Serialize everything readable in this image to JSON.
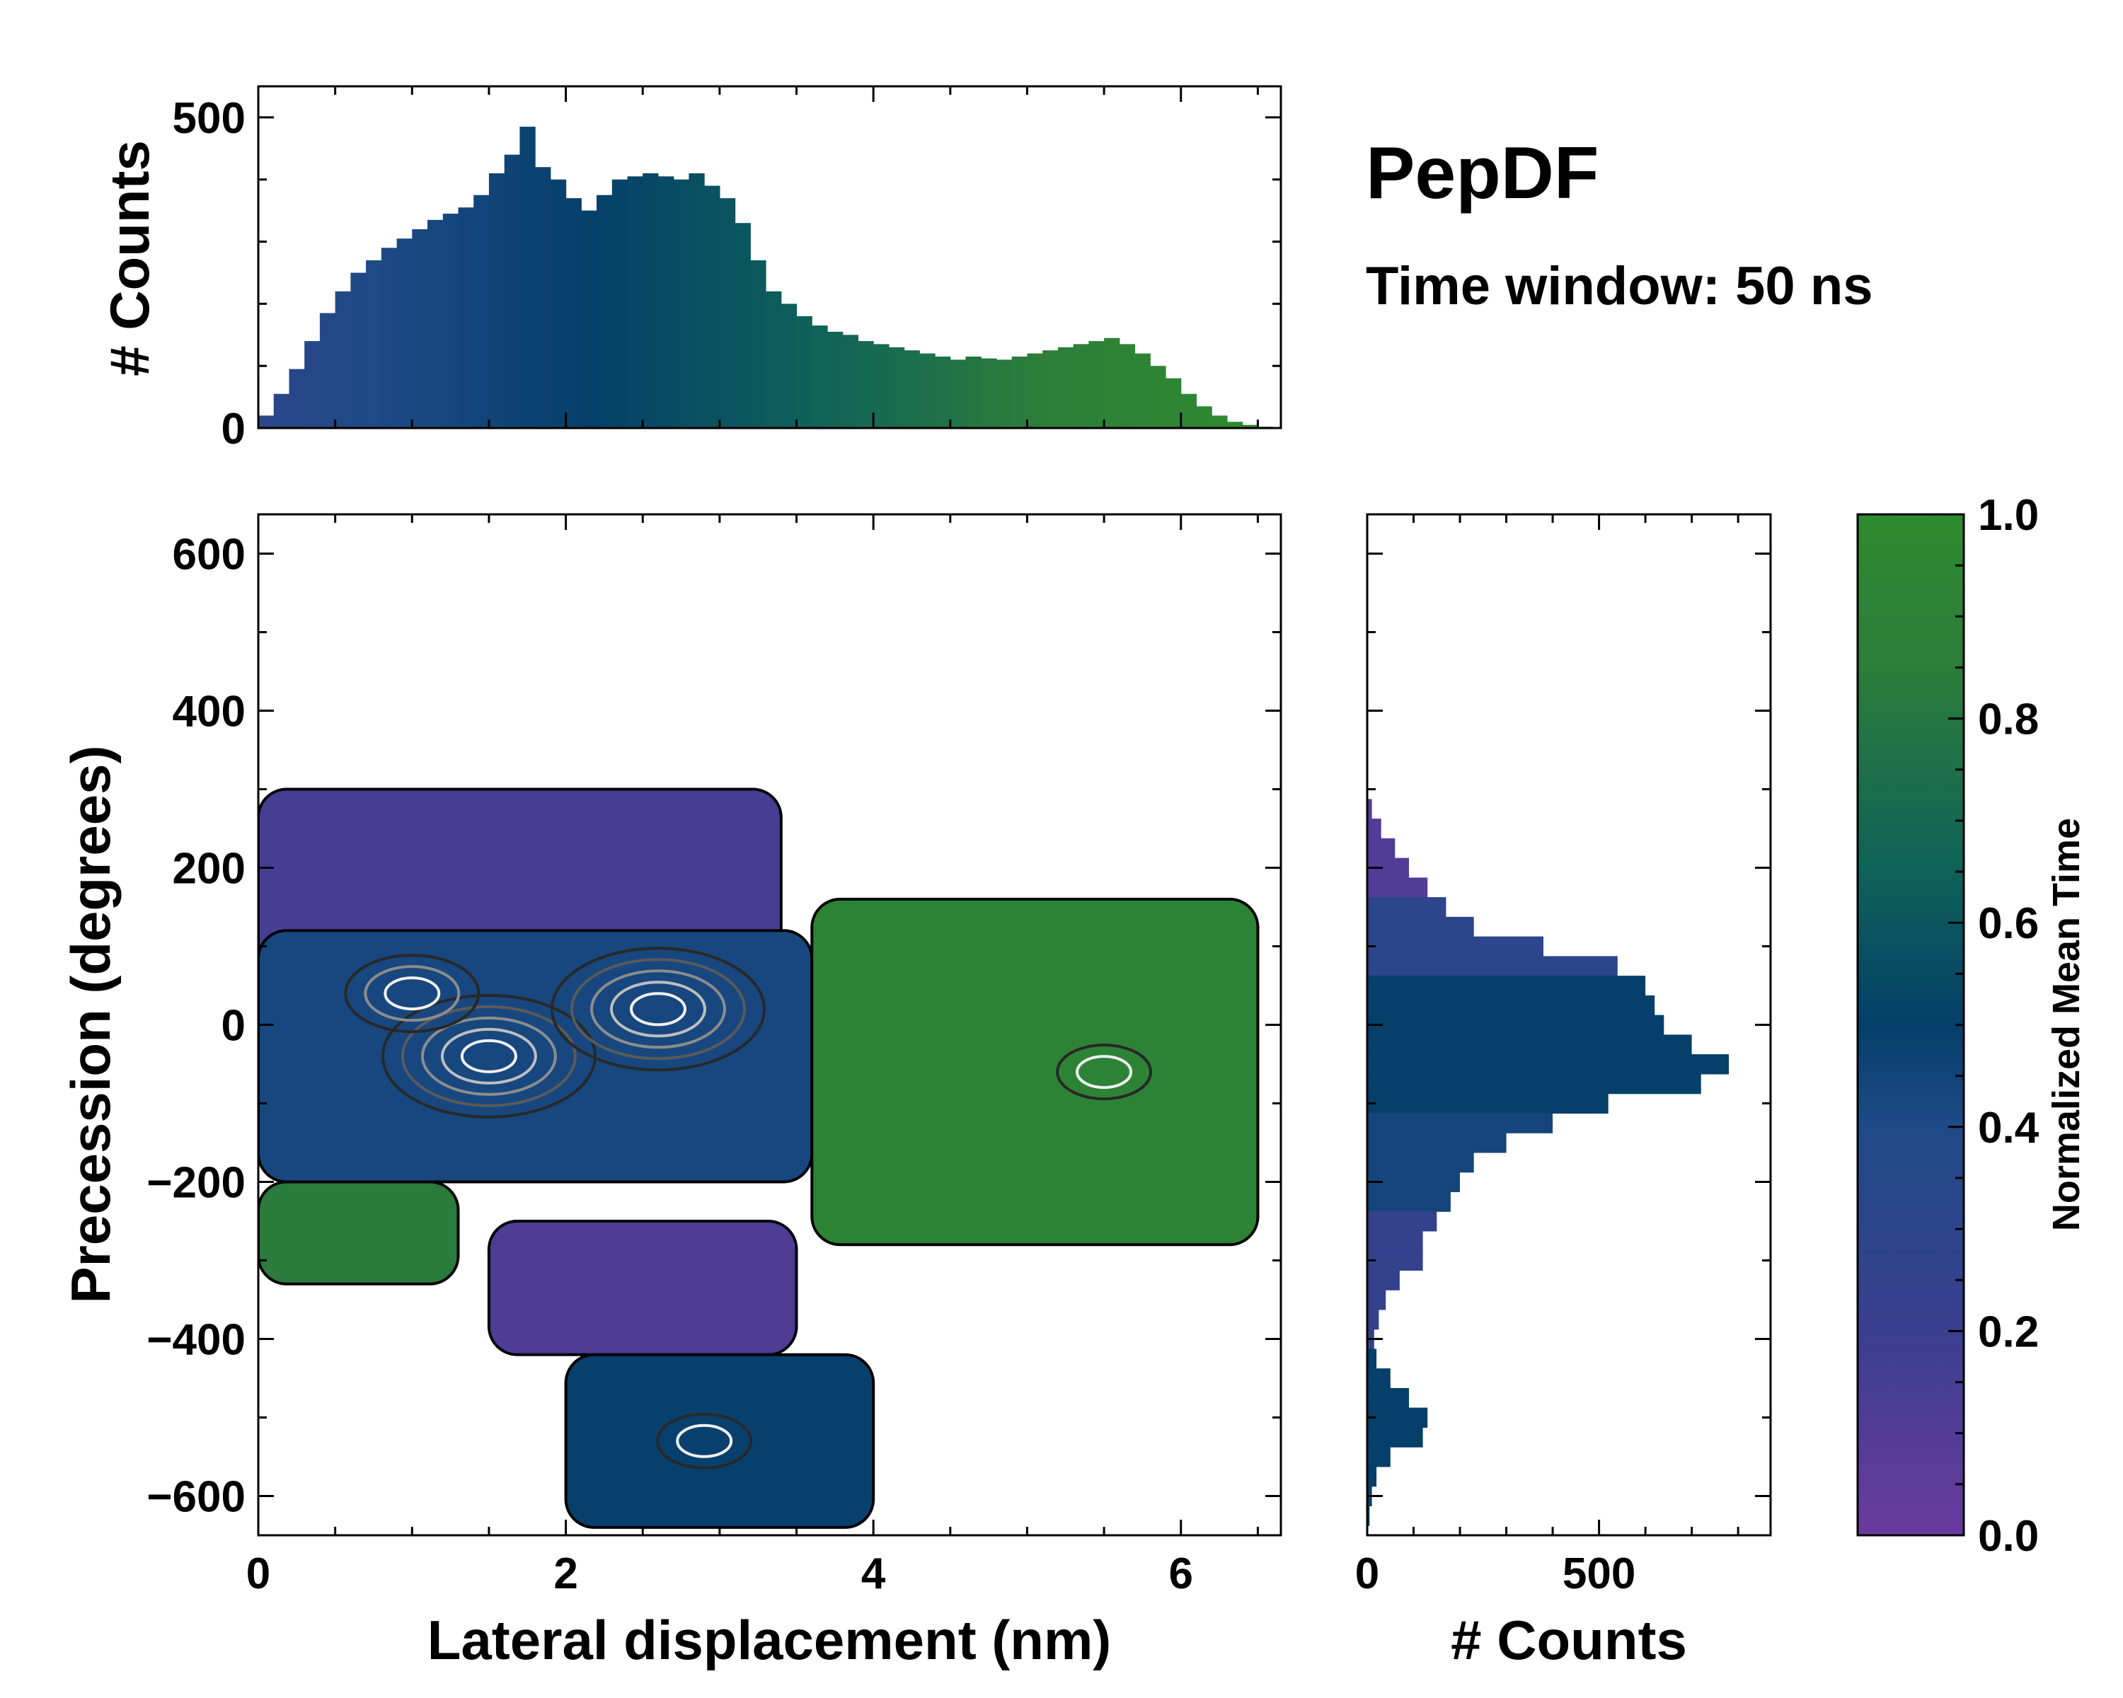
{
  "chart_data": {
    "type": "heatmap",
    "title": "PepDF",
    "subtitle": "Time window: 50 ns",
    "main": {
      "xlabel": "Lateral displacement (nm)",
      "ylabel": "Precession (degrees)",
      "xlim": [
        0,
        6.65
      ],
      "ylim": [
        -650,
        650
      ],
      "xticks": [
        0,
        2,
        4,
        6
      ],
      "yticks": [
        600,
        400,
        200,
        0,
        -200,
        -400,
        -600
      ],
      "ytick_labels": [
        "600",
        "400",
        "200",
        "0",
        "−200",
        "−400",
        "−600"
      ],
      "color_value": "Normalized Mean Time",
      "regions": [
        {
          "name": "upper-purple",
          "x": [
            0.0,
            3.4
          ],
          "y": [
            60,
            300
          ],
          "mean_time": 0.12
        },
        {
          "name": "core-blue",
          "x": [
            0.0,
            3.6
          ],
          "y": [
            -200,
            120
          ],
          "mean_time": 0.38
        },
        {
          "name": "right-green",
          "x": [
            3.6,
            6.5
          ],
          "y": [
            -280,
            160
          ],
          "mean_time": 0.9
        },
        {
          "name": "lower-left-green",
          "x": [
            0.0,
            1.3
          ],
          "y": [
            -330,
            -200
          ],
          "mean_time": 0.82
        },
        {
          "name": "lower-purple",
          "x": [
            1.5,
            3.5
          ],
          "y": [
            -420,
            -250
          ],
          "mean_time": 0.1
        },
        {
          "name": "bottom-blue",
          "x": [
            2.0,
            4.0
          ],
          "y": [
            -640,
            -420
          ],
          "mean_time": 0.48
        }
      ],
      "density_peaks": [
        {
          "x": 1.5,
          "y": -40,
          "level": "high"
        },
        {
          "x": 2.6,
          "y": 20,
          "level": "high"
        },
        {
          "x": 1.0,
          "y": 40,
          "level": "medium"
        },
        {
          "x": 2.9,
          "y": -530,
          "level": "low"
        },
        {
          "x": 5.5,
          "y": -60,
          "level": "low"
        }
      ]
    },
    "top_histogram": {
      "ylabel": "# Counts",
      "ylim": [
        0,
        550
      ],
      "yticks": [
        0,
        500
      ],
      "x_centers": [
        0.05,
        0.15,
        0.25,
        0.35,
        0.45,
        0.55,
        0.65,
        0.75,
        0.85,
        0.95,
        1.05,
        1.15,
        1.25,
        1.35,
        1.45,
        1.55,
        1.65,
        1.75,
        1.85,
        1.95,
        2.05,
        2.15,
        2.25,
        2.35,
        2.45,
        2.55,
        2.65,
        2.75,
        2.85,
        2.95,
        3.05,
        3.15,
        3.25,
        3.35,
        3.45,
        3.55,
        3.65,
        3.75,
        3.85,
        3.95,
        4.05,
        4.15,
        4.25,
        4.35,
        4.45,
        4.55,
        4.65,
        4.75,
        4.85,
        4.95,
        5.05,
        5.15,
        5.25,
        5.35,
        5.45,
        5.55,
        5.65,
        5.75,
        5.85,
        5.95,
        6.05,
        6.15,
        6.25,
        6.35,
        6.45,
        6.55,
        6.65
      ],
      "counts": [
        20,
        55,
        95,
        140,
        185,
        220,
        250,
        270,
        290,
        305,
        320,
        335,
        345,
        355,
        375,
        410,
        440,
        485,
        420,
        400,
        370,
        350,
        375,
        400,
        405,
        410,
        405,
        400,
        410,
        390,
        370,
        330,
        270,
        220,
        200,
        180,
        165,
        155,
        150,
        140,
        135,
        130,
        125,
        120,
        115,
        110,
        115,
        112,
        110,
        115,
        120,
        125,
        130,
        135,
        140,
        145,
        135,
        120,
        100,
        80,
        55,
        35,
        20,
        10,
        5,
        2,
        0
      ]
    },
    "right_histogram": {
      "xlabel": "# Counts",
      "xlim": [
        0,
        870
      ],
      "xticks": [
        0,
        500
      ],
      "y_centers": [
        300,
        275,
        250,
        225,
        200,
        175,
        150,
        125,
        100,
        75,
        50,
        25,
        0,
        -25,
        -50,
        -75,
        -100,
        -125,
        -150,
        -175,
        -200,
        -225,
        -250,
        -275,
        -300,
        -325,
        -350,
        -375,
        -400,
        -425,
        -450,
        -475,
        -500,
        -525,
        -550,
        -575,
        -600,
        -625,
        -650
      ],
      "counts": [
        0,
        10,
        30,
        60,
        90,
        130,
        170,
        230,
        380,
        540,
        600,
        620,
        640,
        700,
        780,
        720,
        520,
        400,
        300,
        230,
        200,
        180,
        150,
        120,
        120,
        70,
        40,
        25,
        15,
        20,
        50,
        90,
        130,
        120,
        50,
        20,
        10,
        5,
        0
      ]
    },
    "colorbar": {
      "label": "Normalized Mean Time",
      "range": [
        0.0,
        1.0
      ],
      "ticks": [
        0.0,
        0.2,
        0.4,
        0.6,
        0.8,
        1.0
      ],
      "tick_labels": [
        "0.0",
        "0.2",
        "0.4",
        "0.6",
        "0.8",
        "1.0"
      ],
      "colors": [
        "#6a3a9e",
        "#3a3f8f",
        "#1e4a86",
        "#053f6a",
        "#0e6258",
        "#2c7d3a",
        "#2e8b2e"
      ]
    }
  }
}
